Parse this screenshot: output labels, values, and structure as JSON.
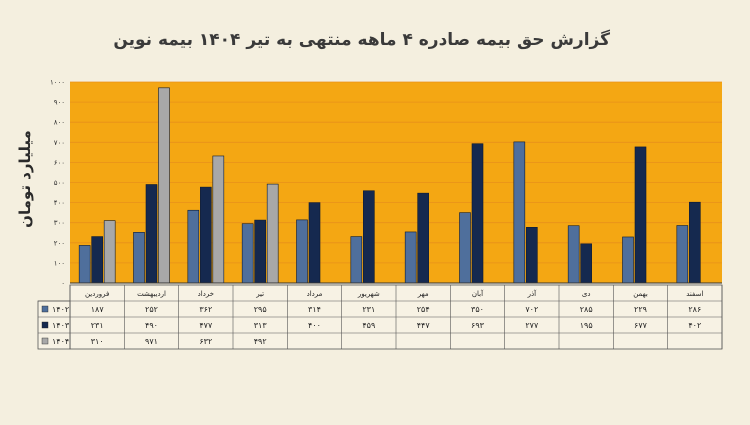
{
  "chart_data": {
    "type": "bar",
    "title": "گزارش  حق بیمه صادره ۴ ماهه منتهی به تیر ۱۴۰۴ بیمه نوین",
    "xlabel": "",
    "ylabel": "میلیارد تومان",
    "ylim": [
      0,
      1000
    ],
    "yticks": [
      0,
      100,
      200,
      300,
      400,
      500,
      600,
      700,
      800,
      900,
      1000
    ],
    "ytick_labels": [
      "۰",
      "۱۰۰",
      "۲۰۰",
      "۳۰۰",
      "۴۰۰",
      "۵۰۰",
      "۶۰۰",
      "۷۰۰",
      "۸۰۰",
      "۹۰۰",
      "۱۰۰۰"
    ],
    "categories": [
      "فروردین",
      "اردیبهشت",
      "خرداد",
      "تیر",
      "مرداد",
      "شهریور",
      "مهر",
      "آبان",
      "آذر",
      "دی",
      "بهمن",
      "اسفند"
    ],
    "grid": true,
    "legend": "table-below",
    "series": [
      {
        "name": "۱۴۰۲",
        "color": "#4f6f9c",
        "values": [
          187,
          252,
          362,
          295,
          314,
          231,
          254,
          350,
          702,
          285,
          229,
          286
        ],
        "labels": [
          "۱۸۷",
          "۲۵۲",
          "۳۶۲",
          "۲۹۵",
          "۳۱۴",
          "۲۳۱",
          "۲۵۴",
          "۳۵۰",
          "۷۰۲",
          "۲۸۵",
          "۲۲۹",
          "۲۸۶"
        ]
      },
      {
        "name": "۱۴۰۳",
        "color": "#15294f",
        "values": [
          231,
          490,
          477,
          313,
          400,
          459,
          447,
          693,
          277,
          195,
          677,
          402
        ],
        "labels": [
          "۲۳۱",
          "۴۹۰",
          "۴۷۷",
          "۳۱۳",
          "۴۰۰",
          "۴۵۹",
          "۴۴۷",
          "۶۹۳",
          "۲۷۷",
          "۱۹۵",
          "۶۷۷",
          "۴۰۲"
        ]
      },
      {
        "name": "۱۴۰۴",
        "color": "#a8a8a8",
        "values": [
          310,
          971,
          632,
          492,
          null,
          null,
          null,
          null,
          null,
          null,
          null,
          null
        ],
        "labels": [
          "۳۱۰",
          "۹۷۱",
          "۶۳۲",
          "۴۹۲",
          "",
          "",
          "",
          "",
          "",
          "",
          "",
          ""
        ]
      }
    ]
  }
}
